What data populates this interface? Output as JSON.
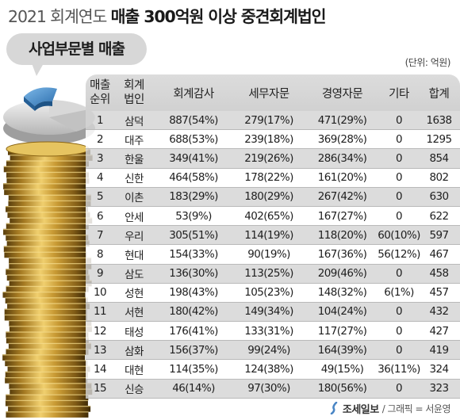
{
  "title": {
    "prefix": "2021 회계연도",
    "main": "매출 300억원 이상 중견회계법인"
  },
  "subtitle": "사업부문별 매출",
  "unit_note": "(단위: 억원)",
  "columns": {
    "rank": [
      "매출",
      "순위"
    ],
    "firm": [
      "회계",
      "법인"
    ],
    "audit": "회계감사",
    "tax": "세무자문",
    "mgmt": "경영자문",
    "etc": "기타",
    "total": "합계"
  },
  "rows": [
    {
      "rank": "1",
      "firm": "삼덕",
      "audit": "887(54%)",
      "tax": "279(17%)",
      "mgmt": "471(29%)",
      "etc": "0",
      "total": "1638"
    },
    {
      "rank": "2",
      "firm": "대주",
      "audit": "688(53%)",
      "tax": "239(18%)",
      "mgmt": "369(28%)",
      "etc": "0",
      "total": "1295"
    },
    {
      "rank": "3",
      "firm": "한울",
      "audit": "349(41%)",
      "tax": "219(26%)",
      "mgmt": "286(34%)",
      "etc": "0",
      "total": "854"
    },
    {
      "rank": "4",
      "firm": "신한",
      "audit": "464(58%)",
      "tax": "178(22%)",
      "mgmt": "161(20%)",
      "etc": "0",
      "total": "802"
    },
    {
      "rank": "5",
      "firm": "이촌",
      "audit": "183(29%)",
      "tax": "180(29%)",
      "mgmt": "267(42%)",
      "etc": "0",
      "total": "630"
    },
    {
      "rank": "6",
      "firm": "안세",
      "audit": "53(9%)",
      "tax": "402(65%)",
      "mgmt": "167(27%)",
      "etc": "0",
      "total": "622"
    },
    {
      "rank": "7",
      "firm": "우리",
      "audit": "305(51%)",
      "tax": "114(19%)",
      "mgmt": "118(20%)",
      "etc": "60(10%)",
      "total": "597"
    },
    {
      "rank": "8",
      "firm": "현대",
      "audit": "154(33%)",
      "tax": "90(19%)",
      "mgmt": "167(36%)",
      "etc": "56(12%)",
      "total": "467"
    },
    {
      "rank": "9",
      "firm": "삼도",
      "audit": "136(30%)",
      "tax": "113(25%)",
      "mgmt": "209(46%)",
      "etc": "0",
      "total": "458"
    },
    {
      "rank": "10",
      "firm": "성현",
      "audit": "198(43%)",
      "tax": "105(23%)",
      "mgmt": "148(32%)",
      "etc": "6(1%)",
      "total": "457"
    },
    {
      "rank": "11",
      "firm": "서현",
      "audit": "180(42%)",
      "tax": "149(34%)",
      "mgmt": "104(24%)",
      "etc": "0",
      "total": "432"
    },
    {
      "rank": "12",
      "firm": "태성",
      "audit": "176(41%)",
      "tax": "133(31%)",
      "mgmt": "117(27%)",
      "etc": "0",
      "total": "427"
    },
    {
      "rank": "13",
      "firm": "삼화",
      "audit": "156(37%)",
      "tax": "99(24%)",
      "mgmt": "164(39%)",
      "etc": "0",
      "total": "419"
    },
    {
      "rank": "14",
      "firm": "대현",
      "audit": "114(35%)",
      "tax": "124(38%)",
      "mgmt": "49(15%)",
      "etc": "36(11%)",
      "total": "324"
    },
    {
      "rank": "15",
      "firm": "신승",
      "audit": "46(14%)",
      "tax": "97(30%)",
      "mgmt": "180(56%)",
      "etc": "0",
      "total": "323"
    }
  ],
  "footer": {
    "logo_icon": "brush-stroke-icon",
    "brand": "조세일보",
    "credit": "/ 그래픽 = 서윤영"
  },
  "colors": {
    "header_bg": "#d5d5d5",
    "odd_row_bg": "#d4d4d4",
    "coin_gold": "#c9a13a",
    "coin_dark": "#6e4f14",
    "pie_blue": "#3f88c8"
  }
}
